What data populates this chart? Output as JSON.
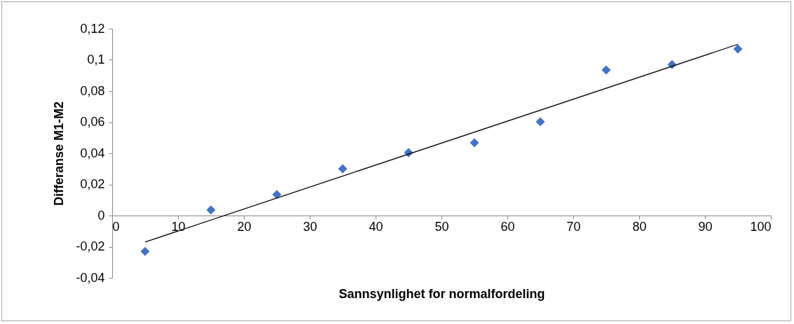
{
  "chart_data": {
    "type": "scatter",
    "xlabel": "Sannsynlighet for normalfordeling",
    "ylabel": "Differanse M1-M2",
    "x": [
      5,
      15,
      25,
      35,
      45,
      55,
      65,
      75,
      85,
      95
    ],
    "series": [
      {
        "color": "#4472c4",
        "marker": "diamond",
        "values": [
          -0.023,
          0.0036,
          0.0135,
          0.03,
          0.0404,
          0.0467,
          0.0602,
          0.0935,
          0.097,
          0.107
        ]
      },
      {
        "type": "line",
        "color": "#000000",
        "x": [
          5,
          95
        ],
        "values": [
          -0.017,
          0.11
        ]
      }
    ],
    "xlim": [
      0,
      100
    ],
    "xticks": [
      0,
      10,
      20,
      30,
      40,
      50,
      60,
      70,
      80,
      90,
      100
    ],
    "ylim": [
      -0.04,
      0.12
    ],
    "yticks": [
      {
        "value": -0.04,
        "label": "-0,04"
      },
      {
        "value": -0.02,
        "label": "-0,02"
      },
      {
        "value": 0,
        "label": "0"
      },
      {
        "value": 0.02,
        "label": "0,02"
      },
      {
        "value": 0.04,
        "label": "0,04"
      },
      {
        "value": 0.06,
        "label": "0,06"
      },
      {
        "value": 0.08,
        "label": "0,08"
      },
      {
        "value": 0.1,
        "label": "0,1"
      },
      {
        "value": 0.12,
        "label": "0,12"
      }
    ],
    "grid": false
  }
}
